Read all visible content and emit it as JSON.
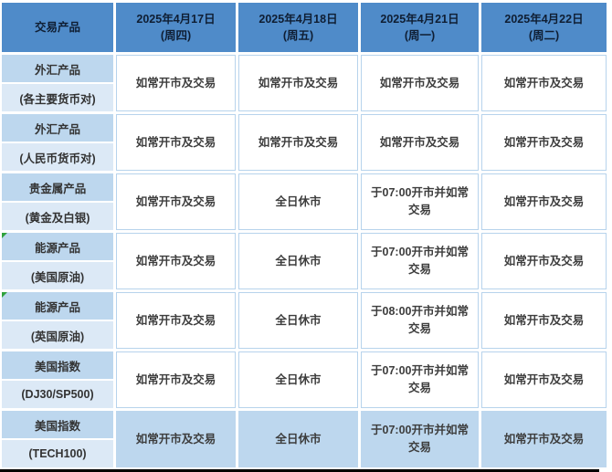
{
  "colors": {
    "header_bg": "#4F8BC9",
    "header_text": "#0F1E33",
    "product_cell_top_bg": "#BDD7EE",
    "product_cell_bottom_bg": "#DCE9F6",
    "data_cell_bg": "#FFFFFF",
    "last_row_cell_bg": "#BDD7EE",
    "grid_line": "#B7D3EC",
    "error_marker_green": "#2FA23C",
    "bottom_border": "#000000"
  },
  "table": {
    "product_header": "交易产品",
    "date_headers": [
      {
        "date": "2025年4月17日",
        "weekday": "(周四)"
      },
      {
        "date": "2025年4月18日",
        "weekday": "(周五)"
      },
      {
        "date": "2025年4月21日",
        "weekday": "(周一)"
      },
      {
        "date": "2025年4月22日",
        "weekday": "(周二)"
      }
    ],
    "rows": [
      {
        "product": "外汇产品",
        "subtitle": "(各主要货币对)",
        "cells": [
          "如常开市及交易",
          "如常开市及交易",
          "如常开市及交易",
          "如常开市及交易"
        ]
      },
      {
        "product": "外汇产品",
        "subtitle": "(人民币货币对)",
        "cells": [
          "如常开市及交易",
          "如常开市及交易",
          "如常开市及交易",
          "如常开市及交易"
        ]
      },
      {
        "product": "贵金属产品",
        "subtitle": "(黄金及白银)",
        "cells": [
          "如常开市及交易",
          "全日休市",
          "于07:00开市并如常交易",
          "如常开市及交易"
        ]
      },
      {
        "product": "能源产品",
        "subtitle": "(美国原油)",
        "cells": [
          "如常开市及交易",
          "全日休市",
          "于07:00开市并如常交易",
          "如常开市及交易"
        ]
      },
      {
        "product": "能源产品",
        "subtitle": "(英国原油)",
        "cells": [
          "如常开市及交易",
          "全日休市",
          "于08:00开市并如常交易",
          "如常开市及交易"
        ]
      },
      {
        "product": "美国指数",
        "subtitle": "(DJ30/SP500)",
        "cells": [
          "如常开市及交易",
          "全日休市",
          "于07:00开市并如常交易",
          "如常开市及交易"
        ]
      },
      {
        "product": "美国指数",
        "subtitle": "(TECH100)",
        "cells": [
          "如常开市及交易",
          "全日休市",
          "于07:00开市并如常交易",
          "如常开市及交易"
        ]
      }
    ]
  }
}
